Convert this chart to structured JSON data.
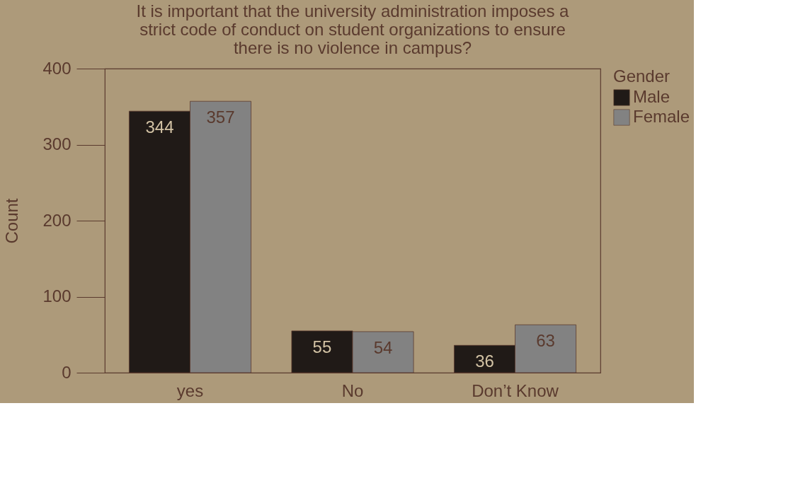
{
  "chart_data": {
    "type": "bar",
    "title": "It is important that the university administration imposes a strict code of conduct on student organizations to ensure there is no violence in campus?",
    "ylabel": "Count",
    "legend_title": "Gender",
    "categories": [
      "yes",
      "No",
      "Don’t Know"
    ],
    "series": [
      {
        "name": "Male",
        "color": "#201a17",
        "values": [
          344,
          55,
          36
        ]
      },
      {
        "name": "Female",
        "color": "#828282",
        "values": [
          357,
          54,
          63
        ]
      }
    ],
    "ylim": [
      0,
      400
    ],
    "yticks": [
      0,
      100,
      200,
      300,
      400
    ],
    "data_labels": true,
    "legend": "right",
    "grid": false
  }
}
